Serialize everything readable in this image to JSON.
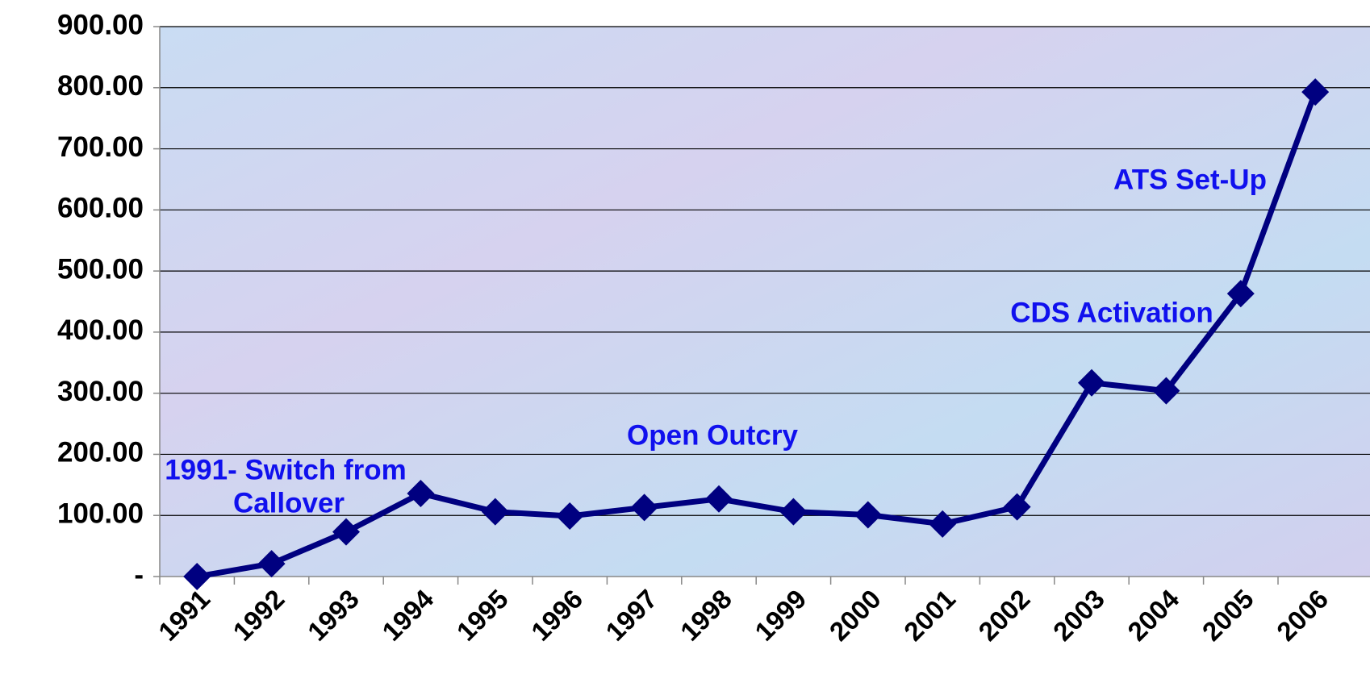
{
  "chart_data": {
    "type": "line",
    "categories": [
      "1991",
      "1992",
      "1993",
      "1994",
      "1995",
      "1996",
      "1997",
      "1998",
      "1999",
      "2000",
      "2001",
      "2002",
      "2003",
      "2004",
      "2005",
      "2006"
    ],
    "series": [
      {
        "name": "Index",
        "color": "#000080",
        "values": [
          0,
          21,
          73,
          136,
          106,
          99,
          113,
          127,
          106,
          101,
          86,
          114,
          317,
          304,
          463,
          793
        ]
      }
    ],
    "ylim": [
      0,
      900
    ],
    "yticks": [
      {
        "value": 0,
        "label": "-"
      },
      {
        "value": 100,
        "label": "100.00"
      },
      {
        "value": 200,
        "label": "200.00"
      },
      {
        "value": 300,
        "label": "300.00"
      },
      {
        "value": 400,
        "label": "400.00"
      },
      {
        "value": 500,
        "label": "500.00"
      },
      {
        "value": 600,
        "label": "600.00"
      },
      {
        "value": 700,
        "label": "700.00"
      },
      {
        "value": 800,
        "label": "800.00"
      },
      {
        "value": 900,
        "label": "900.00"
      }
    ],
    "grid": true,
    "annotations": [
      "1991- Switch from",
      "Callover",
      "Open Outcry",
      "CDS Activation",
      "ATS Set-Up"
    ]
  }
}
